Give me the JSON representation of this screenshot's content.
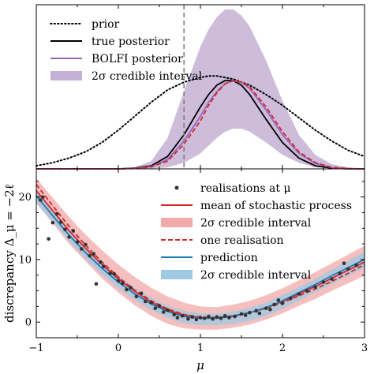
{
  "chart_data": [
    {
      "panel": "top",
      "type": "line",
      "xlim": [
        -1,
        3
      ],
      "ylim": [
        0,
        1.06
      ],
      "y_ticks_labeled": false,
      "grid": false,
      "legend_position": "top-left",
      "vertical_line": {
        "x": 0.8,
        "style": "dashed",
        "color": "#7f7f7f"
      },
      "x": [
        -1.0,
        -0.8,
        -0.6,
        -0.4,
        -0.2,
        0.0,
        0.2,
        0.4,
        0.6,
        0.8,
        1.0,
        1.1,
        1.2,
        1.3,
        1.4,
        1.5,
        1.6,
        1.8,
        2.0,
        2.2,
        2.4,
        2.6,
        2.8,
        3.0
      ],
      "series": [
        {
          "name": "prior",
          "style": "dotted",
          "color": "#000000",
          "y": [
            0.02,
            0.04,
            0.07,
            0.11,
            0.17,
            0.25,
            0.34,
            0.43,
            0.51,
            0.56,
            0.59,
            0.6,
            0.6,
            0.59,
            0.58,
            0.56,
            0.54,
            0.48,
            0.41,
            0.33,
            0.25,
            0.18,
            0.12,
            0.08
          ]
        },
        {
          "name": "true posterior",
          "style": "solid",
          "color": "#000000",
          "y": [
            0.0,
            0.0,
            0.0,
            0.0,
            0.0,
            0.0,
            0.005,
            0.02,
            0.08,
            0.22,
            0.4,
            0.48,
            0.54,
            0.57,
            0.57,
            0.54,
            0.48,
            0.32,
            0.17,
            0.07,
            0.02,
            0.005,
            0.0,
            0.0
          ]
        },
        {
          "name": "BOLFI posterior",
          "style": "solid",
          "color": "#9467bd",
          "y": [
            0.0,
            0.0,
            0.0,
            0.0,
            0.0,
            0.0,
            0.003,
            0.015,
            0.06,
            0.18,
            0.34,
            0.43,
            0.5,
            0.55,
            0.57,
            0.56,
            0.52,
            0.38,
            0.22,
            0.1,
            0.035,
            0.008,
            0.001,
            0.0
          ]
        },
        {
          "name": "",
          "style": "dashed",
          "color": "#d62728",
          "y": [
            0.0,
            0.0,
            0.0,
            0.0,
            0.0,
            0.0,
            0.002,
            0.012,
            0.05,
            0.16,
            0.31,
            0.41,
            0.49,
            0.55,
            0.57,
            0.56,
            0.53,
            0.4,
            0.24,
            0.11,
            0.04,
            0.01,
            0.002,
            0.0
          ]
        }
      ],
      "band": {
        "name": "2σ credible interval",
        "color": "#c5b0d5",
        "upper": [
          0.0,
          0.0,
          0.0,
          0.0,
          0.0,
          0.0,
          0.01,
          0.05,
          0.2,
          0.5,
          0.79,
          0.9,
          0.98,
          1.03,
          1.03,
          0.99,
          0.92,
          0.7,
          0.44,
          0.22,
          0.09,
          0.03,
          0.01,
          0.0
        ],
        "lower": [
          0.0,
          0.0,
          0.0,
          0.0,
          0.0,
          0.0,
          0.0,
          0.002,
          0.01,
          0.04,
          0.1,
          0.15,
          0.2,
          0.24,
          0.26,
          0.26,
          0.24,
          0.17,
          0.09,
          0.04,
          0.01,
          0.002,
          0.0,
          0.0
        ]
      },
      "legend": [
        {
          "label": "prior",
          "kind": "dotted",
          "color": "#000000"
        },
        {
          "label": "true posterior",
          "kind": "solid",
          "color": "#000000"
        },
        {
          "label": "BOLFI posterior",
          "kind": "solid",
          "color": "#9467bd"
        },
        {
          "label": "2σ credible interval",
          "kind": "patch",
          "color": "#c5b0d5"
        }
      ]
    },
    {
      "panel": "bottom",
      "type": "scatter",
      "xlim": [
        -1,
        3
      ],
      "ylim": [
        -2.5,
        24.5
      ],
      "xlabel": "μ",
      "ylabel": "discrepancy Δ_μ = −2ℓ",
      "x_ticks": [
        -1,
        0,
        1,
        2,
        3
      ],
      "x_tick_labels": [
        "−1",
        "0",
        "1",
        "2",
        "3"
      ],
      "y_ticks": [
        0,
        10,
        20
      ],
      "y_tick_labels": [
        "0",
        "10",
        "20"
      ],
      "grid": false,
      "legend_position": "top-right",
      "x": [
        -1.0,
        -0.8,
        -0.6,
        -0.4,
        -0.2,
        0.0,
        0.2,
        0.4,
        0.6,
        0.8,
        1.0,
        1.2,
        1.4,
        1.6,
        1.8,
        2.0,
        2.2,
        2.4,
        2.6,
        2.8,
        3.0
      ],
      "series": [
        {
          "name": "mean of stochastic process",
          "style": "solid",
          "color": "#d62728",
          "y": [
            21.0,
            17.8,
            14.6,
            11.8,
            9.2,
            6.9,
            4.9,
            3.2,
            1.9,
            1.1,
            0.7,
            0.7,
            1.0,
            1.5,
            2.3,
            3.3,
            4.5,
            5.7,
            7.0,
            8.3,
            9.6
          ]
        },
        {
          "name": "one realisation",
          "style": "dashed",
          "color": "#d62728",
          "y": [
            22.0,
            18.6,
            15.3,
            12.3,
            9.6,
            7.2,
            5.1,
            3.4,
            2.1,
            1.2,
            0.8,
            0.7,
            1.0,
            1.5,
            2.2,
            3.1,
            4.2,
            5.3,
            6.5,
            7.8,
            9.2
          ]
        },
        {
          "name": "prediction",
          "style": "solid",
          "color": "#1f77b4",
          "y": [
            20.2,
            17.0,
            13.9,
            11.1,
            8.6,
            6.4,
            4.5,
            2.9,
            1.7,
            0.9,
            0.6,
            0.6,
            0.9,
            1.5,
            2.3,
            3.4,
            4.7,
            6.0,
            7.4,
            8.7,
            10.0
          ]
        }
      ],
      "red_band": {
        "name": "2σ credible interval",
        "color": "#f2a9a9",
        "upper": [
          23.0,
          19.9,
          16.8,
          14.0,
          11.5,
          9.2,
          7.2,
          5.5,
          4.1,
          3.1,
          2.5,
          2.4,
          2.8,
          3.4,
          4.3,
          5.4,
          6.7,
          8.0,
          9.4,
          10.8,
          12.2
        ],
        "lower": [
          19.0,
          15.8,
          12.5,
          9.7,
          7.0,
          4.7,
          2.7,
          1.0,
          -0.3,
          -1.0,
          -1.2,
          -1.2,
          -0.9,
          -0.4,
          0.4,
          1.4,
          2.6,
          3.7,
          5.0,
          6.2,
          7.4
        ]
      },
      "blue_band": {
        "name": "2σ credible interval",
        "color": "#9ecae1",
        "upper": [
          21.3,
          18.0,
          14.9,
          12.1,
          9.6,
          7.4,
          5.5,
          3.9,
          2.6,
          1.8,
          1.4,
          1.4,
          1.7,
          2.3,
          3.1,
          4.3,
          5.6,
          6.9,
          8.4,
          9.8,
          11.2
        ],
        "lower": [
          19.1,
          16.0,
          12.9,
          10.1,
          7.6,
          5.4,
          3.5,
          1.9,
          0.7,
          -0.2,
          -0.5,
          -0.5,
          -0.3,
          0.2,
          1.0,
          2.1,
          3.4,
          4.8,
          6.1,
          7.4,
          8.7
        ]
      },
      "points": [
        [
          -0.95,
          19.5
        ],
        [
          -0.92,
          20.0
        ],
        [
          -0.85,
          13.3
        ],
        [
          -0.8,
          15.9
        ],
        [
          -0.75,
          17.3
        ],
        [
          -0.7,
          16.0
        ],
        [
          -0.65,
          14.8
        ],
        [
          -0.6,
          13.6
        ],
        [
          -0.55,
          14.6
        ],
        [
          -0.5,
          12.8
        ],
        [
          -0.45,
          11.7
        ],
        [
          -0.4,
          12.4
        ],
        [
          -0.35,
          10.6
        ],
        [
          -0.3,
          10.9
        ],
        [
          -0.27,
          6.1
        ],
        [
          -0.22,
          9.6
        ],
        [
          -0.18,
          8.9
        ],
        [
          -0.1,
          7.8
        ],
        [
          -0.05,
          7.7
        ],
        [
          0.0,
          6.6
        ],
        [
          0.05,
          6.2
        ],
        [
          0.1,
          5.2
        ],
        [
          0.15,
          5.5
        ],
        [
          0.22,
          4.1
        ],
        [
          0.28,
          4.6
        ],
        [
          0.33,
          3.3
        ],
        [
          0.4,
          3.1
        ],
        [
          0.45,
          2.2
        ],
        [
          0.5,
          2.6
        ],
        [
          0.55,
          1.6
        ],
        [
          0.6,
          1.9
        ],
        [
          0.68,
          1.2
        ],
        [
          0.72,
          0.7
        ],
        [
          0.78,
          1.0
        ],
        [
          0.85,
          0.5
        ],
        [
          0.9,
          0.8
        ],
        [
          0.95,
          0.4
        ],
        [
          1.0,
          0.7
        ],
        [
          1.05,
          0.6
        ],
        [
          1.1,
          0.9
        ],
        [
          1.15,
          0.5
        ],
        [
          1.2,
          0.8
        ],
        [
          1.25,
          0.6
        ],
        [
          1.3,
          1.0
        ],
        [
          1.35,
          0.7
        ],
        [
          1.42,
          0.9
        ],
        [
          1.5,
          1.3
        ],
        [
          1.55,
          1.1
        ],
        [
          1.6,
          1.5
        ],
        [
          1.68,
          1.8
        ],
        [
          1.72,
          1.4
        ],
        [
          1.8,
          2.2
        ],
        [
          1.85,
          2.0
        ],
        [
          1.9,
          2.8
        ],
        [
          1.95,
          3.5
        ],
        [
          2.0,
          3.0
        ],
        [
          2.1,
          3.8
        ],
        [
          2.2,
          4.5
        ],
        [
          2.3,
          5.0
        ],
        [
          2.4,
          5.6
        ],
        [
          2.5,
          6.4
        ],
        [
          2.6,
          6.9
        ],
        [
          2.7,
          7.8
        ],
        [
          2.75,
          9.4
        ],
        [
          2.8,
          8.5
        ],
        [
          2.9,
          9.1
        ]
      ],
      "legend": [
        {
          "label": "realisations at μ",
          "kind": "point",
          "color": "#333333"
        },
        {
          "label": "mean of stochastic process",
          "kind": "solid",
          "color": "#d62728"
        },
        {
          "label": "2σ credible interval",
          "kind": "patch",
          "color": "#f2a9a9"
        },
        {
          "label": "one realisation",
          "kind": "dashed",
          "color": "#d62728"
        },
        {
          "label": "prediction",
          "kind": "solid",
          "color": "#1f77b4"
        },
        {
          "label": "2σ credible interval",
          "kind": "patch",
          "color": "#9ecae1"
        }
      ]
    }
  ]
}
